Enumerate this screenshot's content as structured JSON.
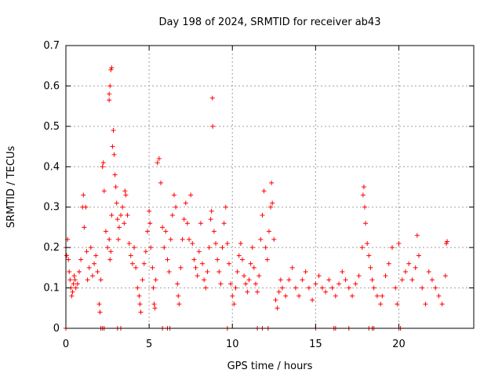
{
  "chart_data": {
    "type": "scatter",
    "title": "Day 198 of 2024, SRMTID for receiver ab43",
    "xlabel": "GPS time / hours",
    "ylabel": "SRMTID / TECUs",
    "xlim": [
      0,
      24.5
    ],
    "ylim": [
      0,
      0.7
    ],
    "xticks": [
      0,
      5,
      10,
      15,
      20
    ],
    "yticks": [
      0,
      0.1,
      0.2,
      0.3,
      0.4,
      0.5,
      0.6,
      0.7
    ],
    "xtick_labels": [
      "0",
      "5",
      "10",
      "15",
      "20"
    ],
    "ytick_labels": [
      "0",
      "0.1",
      "0.2",
      "0.3",
      "0.4",
      "0.5",
      "0.6",
      "0.7"
    ],
    "grid": true,
    "marker": "plus",
    "color": "#ff0000",
    "series": [
      {
        "name": "SRMTID",
        "points": [
          [
            0.0,
            0.2
          ],
          [
            0.05,
            0.18
          ],
          [
            0.1,
            0.22
          ],
          [
            0.15,
            0.17
          ],
          [
            0.2,
            0.14
          ],
          [
            0.25,
            0.12
          ],
          [
            0.3,
            0.1
          ],
          [
            0.35,
            0.08
          ],
          [
            0.4,
            0.09
          ],
          [
            0.45,
            0.11
          ],
          [
            0.5,
            0.13
          ],
          [
            0.55,
            0.12
          ],
          [
            0.6,
            0.1
          ],
          [
            0.7,
            0.11
          ],
          [
            0.8,
            0.14
          ],
          [
            0.9,
            0.17
          ],
          [
            1.0,
            0.3
          ],
          [
            1.05,
            0.33
          ],
          [
            1.1,
            0.25
          ],
          [
            1.2,
            0.3
          ],
          [
            1.25,
            0.19
          ],
          [
            1.3,
            0.12
          ],
          [
            1.4,
            0.15
          ],
          [
            1.5,
            0.2
          ],
          [
            1.6,
            0.13
          ],
          [
            1.7,
            0.16
          ],
          [
            1.8,
            0.18
          ],
          [
            1.9,
            0.14
          ],
          [
            2.0,
            0.06
          ],
          [
            2.05,
            0.04
          ],
          [
            2.1,
            0.12
          ],
          [
            2.2,
            0.4
          ],
          [
            2.25,
            0.41
          ],
          [
            2.3,
            0.34
          ],
          [
            2.4,
            0.24
          ],
          [
            2.5,
            0.2
          ],
          [
            2.6,
            0.22
          ],
          [
            2.65,
            0.17
          ],
          [
            2.7,
            0.19
          ],
          [
            2.75,
            0.28
          ],
          [
            2.8,
            0.45
          ],
          [
            2.85,
            0.49
          ],
          [
            2.9,
            0.43
          ],
          [
            2.95,
            0.38
          ],
          [
            2.7,
            0.64
          ],
          [
            2.75,
            0.645
          ],
          [
            2.6,
            0.58
          ],
          [
            2.65,
            0.6
          ],
          [
            2.6,
            0.565
          ],
          [
            3.0,
            0.35
          ],
          [
            3.05,
            0.31
          ],
          [
            3.1,
            0.27
          ],
          [
            3.15,
            0.22
          ],
          [
            3.2,
            0.25
          ],
          [
            3.3,
            0.28
          ],
          [
            3.4,
            0.3
          ],
          [
            3.5,
            0.26
          ],
          [
            3.55,
            0.34
          ],
          [
            3.6,
            0.33
          ],
          [
            3.7,
            0.28
          ],
          [
            3.8,
            0.21
          ],
          [
            3.9,
            0.18
          ],
          [
            4.0,
            0.16
          ],
          [
            4.1,
            0.2
          ],
          [
            4.2,
            0.15
          ],
          [
            4.3,
            0.1
          ],
          [
            4.4,
            0.08
          ],
          [
            4.45,
            0.06
          ],
          [
            4.5,
            0.04
          ],
          [
            4.6,
            0.12
          ],
          [
            4.7,
            0.16
          ],
          [
            4.8,
            0.19
          ],
          [
            4.9,
            0.24
          ],
          [
            5.0,
            0.29
          ],
          [
            5.05,
            0.26
          ],
          [
            5.1,
            0.2
          ],
          [
            5.2,
            0.15
          ],
          [
            5.25,
            0.1
          ],
          [
            5.3,
            0.06
          ],
          [
            5.35,
            0.05
          ],
          [
            5.4,
            0.12
          ],
          [
            5.5,
            0.41
          ],
          [
            5.6,
            0.42
          ],
          [
            5.7,
            0.36
          ],
          [
            5.8,
            0.25
          ],
          [
            5.9,
            0.2
          ],
          [
            6.0,
            0.24
          ],
          [
            6.1,
            0.17
          ],
          [
            6.2,
            0.14
          ],
          [
            6.3,
            0.22
          ],
          [
            6.4,
            0.28
          ],
          [
            6.5,
            0.33
          ],
          [
            6.6,
            0.3
          ],
          [
            6.7,
            0.11
          ],
          [
            6.75,
            0.08
          ],
          [
            6.8,
            0.06
          ],
          [
            6.9,
            0.15
          ],
          [
            7.0,
            0.22
          ],
          [
            7.1,
            0.27
          ],
          [
            7.2,
            0.31
          ],
          [
            7.3,
            0.26
          ],
          [
            7.4,
            0.22
          ],
          [
            7.5,
            0.33
          ],
          [
            7.6,
            0.21
          ],
          [
            7.7,
            0.17
          ],
          [
            7.8,
            0.15
          ],
          [
            7.9,
            0.13
          ],
          [
            8.0,
            0.19
          ],
          [
            8.1,
            0.26
          ],
          [
            8.2,
            0.16
          ],
          [
            8.3,
            0.12
          ],
          [
            8.4,
            0.1
          ],
          [
            8.5,
            0.14
          ],
          [
            8.6,
            0.2
          ],
          [
            8.7,
            0.27
          ],
          [
            8.75,
            0.29
          ],
          [
            8.8,
            0.57
          ],
          [
            8.82,
            0.5
          ],
          [
            8.9,
            0.24
          ],
          [
            9.0,
            0.21
          ],
          [
            9.1,
            0.17
          ],
          [
            9.2,
            0.14
          ],
          [
            9.3,
            0.11
          ],
          [
            9.4,
            0.2
          ],
          [
            9.5,
            0.26
          ],
          [
            9.6,
            0.3
          ],
          [
            9.7,
            0.21
          ],
          [
            9.8,
            0.16
          ],
          [
            9.9,
            0.11
          ],
          [
            10.0,
            0.08
          ],
          [
            10.1,
            0.06
          ],
          [
            10.2,
            0.1
          ],
          [
            10.3,
            0.14
          ],
          [
            10.4,
            0.18
          ],
          [
            10.5,
            0.21
          ],
          [
            10.6,
            0.17
          ],
          [
            10.7,
            0.13
          ],
          [
            10.8,
            0.11
          ],
          [
            10.9,
            0.09
          ],
          [
            11.0,
            0.12
          ],
          [
            11.1,
            0.16
          ],
          [
            11.2,
            0.2
          ],
          [
            11.3,
            0.15
          ],
          [
            11.4,
            0.11
          ],
          [
            11.5,
            0.09
          ],
          [
            11.6,
            0.13
          ],
          [
            11.7,
            0.22
          ],
          [
            11.8,
            0.28
          ],
          [
            11.9,
            0.34
          ],
          [
            12.0,
            0.2
          ],
          [
            12.1,
            0.17
          ],
          [
            12.2,
            0.24
          ],
          [
            12.3,
            0.3
          ],
          [
            12.35,
            0.36
          ],
          [
            12.4,
            0.31
          ],
          [
            12.5,
            0.22
          ],
          [
            12.6,
            0.07
          ],
          [
            12.7,
            0.05
          ],
          [
            12.8,
            0.09
          ],
          [
            12.9,
            0.12
          ],
          [
            13.0,
            0.1
          ],
          [
            13.2,
            0.08
          ],
          [
            13.4,
            0.12
          ],
          [
            13.6,
            0.15
          ],
          [
            13.8,
            0.1
          ],
          [
            14.0,
            0.08
          ],
          [
            14.2,
            0.12
          ],
          [
            14.4,
            0.14
          ],
          [
            14.6,
            0.1
          ],
          [
            14.8,
            0.07
          ],
          [
            15.0,
            0.11
          ],
          [
            15.2,
            0.13
          ],
          [
            15.4,
            0.1
          ],
          [
            15.6,
            0.09
          ],
          [
            15.8,
            0.12
          ],
          [
            16.0,
            0.1
          ],
          [
            16.2,
            0.08
          ],
          [
            16.4,
            0.11
          ],
          [
            16.6,
            0.14
          ],
          [
            16.8,
            0.12
          ],
          [
            17.0,
            0.1
          ],
          [
            17.2,
            0.08
          ],
          [
            17.4,
            0.11
          ],
          [
            17.6,
            0.13
          ],
          [
            17.8,
            0.2
          ],
          [
            17.85,
            0.33
          ],
          [
            17.9,
            0.35
          ],
          [
            17.95,
            0.3
          ],
          [
            18.0,
            0.26
          ],
          [
            18.1,
            0.21
          ],
          [
            18.2,
            0.18
          ],
          [
            18.3,
            0.15
          ],
          [
            18.4,
            0.12
          ],
          [
            18.5,
            0.1
          ],
          [
            18.7,
            0.08
          ],
          [
            18.9,
            0.06
          ],
          [
            19.0,
            0.08
          ],
          [
            19.2,
            0.13
          ],
          [
            19.4,
            0.16
          ],
          [
            19.6,
            0.2
          ],
          [
            19.8,
            0.1
          ],
          [
            19.9,
            0.06
          ],
          [
            20.0,
            0.21
          ],
          [
            20.2,
            0.12
          ],
          [
            20.4,
            0.14
          ],
          [
            20.6,
            0.16
          ],
          [
            20.8,
            0.12
          ],
          [
            21.0,
            0.15
          ],
          [
            21.1,
            0.23
          ],
          [
            21.2,
            0.18
          ],
          [
            21.4,
            0.1
          ],
          [
            21.6,
            0.06
          ],
          [
            21.8,
            0.14
          ],
          [
            22.0,
            0.12
          ],
          [
            22.2,
            0.1
          ],
          [
            22.4,
            0.08
          ],
          [
            22.6,
            0.06
          ],
          [
            22.8,
            0.13
          ],
          [
            22.85,
            0.21
          ],
          [
            22.9,
            0.215
          ]
        ]
      }
    ],
    "zero_markers_x": [
      0.0,
      2.1,
      2.2,
      2.3,
      3.1,
      3.3,
      5.8,
      6.1,
      6.25,
      9.7,
      11.5,
      11.8,
      12.15,
      15.0,
      16.1,
      16.2,
      17.0,
      18.2,
      18.4,
      18.5,
      20.0,
      20.1
    ]
  }
}
